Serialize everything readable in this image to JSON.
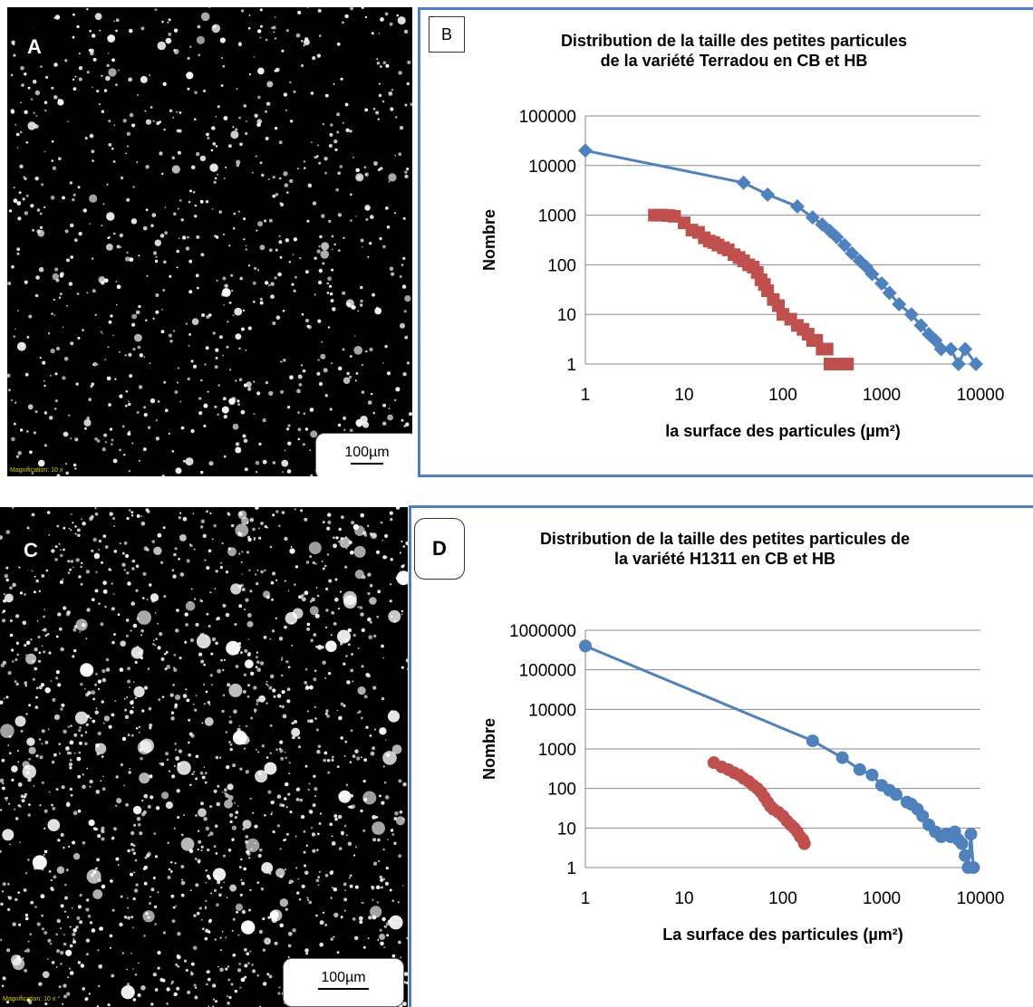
{
  "panels": {
    "a": {
      "letter": "A",
      "scalebar": "100µm",
      "magnification": "Magnification: 10 x"
    },
    "b": {
      "letter": "B"
    },
    "c": {
      "letter": "C",
      "scalebar": "100µm",
      "magnification": "Magnification: 10 x"
    },
    "d": {
      "letter": "D"
    }
  },
  "colors": {
    "series_blue": "#4f81bd",
    "series_red": "#c0504d",
    "rule": "#4f7fc0"
  },
  "chart_data": [
    {
      "type": "scatter",
      "title_line1": "Distribution de la taille des petites particules",
      "title_line2": "de la variété Terradou  en CB et HB",
      "xlabel": "la surface des particules (µm²)",
      "ylabel": "Nombre",
      "x_scale": "log",
      "y_scale": "log",
      "xlim": [
        1,
        10000
      ],
      "ylim": [
        1,
        100000
      ],
      "x_ticks": [
        "1",
        "10",
        "100",
        "1000",
        "10000"
      ],
      "y_ticks": [
        "1",
        "10",
        "100",
        "1000",
        "10000",
        "100000"
      ],
      "grid": "horizontal",
      "series": [
        {
          "color": "#4f81bd",
          "marker": "diamond",
          "line": true,
          "points": [
            [
              1,
              20000
            ],
            [
              40,
              4500
            ],
            [
              70,
              2600
            ],
            [
              140,
              1500
            ],
            [
              200,
              900
            ],
            [
              250,
              650
            ],
            [
              300,
              480
            ],
            [
              350,
              360
            ],
            [
              420,
              250
            ],
            [
              500,
              170
            ],
            [
              600,
              120
            ],
            [
              700,
              90
            ],
            [
              800,
              65
            ],
            [
              1000,
              42
            ],
            [
              1200,
              27
            ],
            [
              1500,
              16
            ],
            [
              2000,
              10
            ],
            [
              2500,
              6
            ],
            [
              3000,
              4
            ],
            [
              3500,
              3
            ],
            [
              4000,
              2
            ],
            [
              5000,
              2
            ],
            [
              6000,
              1
            ],
            [
              7000,
              2
            ],
            [
              9000,
              1
            ]
          ]
        },
        {
          "color": "#c0504d",
          "marker": "square",
          "line": false,
          "points": [
            [
              5,
              1000
            ],
            [
              6,
              1000
            ],
            [
              7,
              980
            ],
            [
              8,
              950
            ],
            [
              10,
              700
            ],
            [
              12,
              500
            ],
            [
              14,
              450
            ],
            [
              16,
              350
            ],
            [
              18,
              300
            ],
            [
              20,
              280
            ],
            [
              22,
              250
            ],
            [
              25,
              220
            ],
            [
              28,
              200
            ],
            [
              32,
              160
            ],
            [
              36,
              140
            ],
            [
              40,
              120
            ],
            [
              45,
              100
            ],
            [
              50,
              90
            ],
            [
              55,
              70
            ],
            [
              60,
              50
            ],
            [
              65,
              40
            ],
            [
              70,
              30
            ],
            [
              80,
              20
            ],
            [
              90,
              15
            ],
            [
              100,
              10
            ],
            [
              120,
              8
            ],
            [
              140,
              6
            ],
            [
              160,
              5
            ],
            [
              180,
              4
            ],
            [
              200,
              3
            ],
            [
              220,
              3
            ],
            [
              250,
              2
            ],
            [
              280,
              2
            ],
            [
              300,
              1
            ],
            [
              350,
              1
            ],
            [
              400,
              1
            ],
            [
              450,
              1
            ]
          ]
        }
      ]
    },
    {
      "type": "scatter",
      "title_line1": "Distribution de la taille des petites  particules de",
      "title_line2": "la variété H1311 en CB et HB",
      "xlabel": "La surface des particules (µm²)",
      "ylabel": "Nombre",
      "x_scale": "log",
      "y_scale": "log",
      "xlim": [
        1,
        10000
      ],
      "ylim": [
        1,
        1000000
      ],
      "x_ticks": [
        "1",
        "10",
        "100",
        "1000",
        "10000"
      ],
      "y_ticks": [
        "1",
        "10",
        "100",
        "1000",
        "10000",
        "100000",
        "1000000"
      ],
      "grid": "horizontal",
      "series": [
        {
          "color": "#4f81bd",
          "marker": "circle",
          "line": true,
          "points": [
            [
              1,
              400000
            ],
            [
              200,
              1600
            ],
            [
              400,
              600
            ],
            [
              600,
              300
            ],
            [
              800,
              220
            ],
            [
              1000,
              120
            ],
            [
              1200,
              90
            ],
            [
              1400,
              70
            ],
            [
              1800,
              45
            ],
            [
              2000,
              40
            ],
            [
              2300,
              30
            ],
            [
              2600,
              20
            ],
            [
              3000,
              12
            ],
            [
              3500,
              8
            ],
            [
              4000,
              6
            ],
            [
              4500,
              7
            ],
            [
              5000,
              6
            ],
            [
              5500,
              8
            ],
            [
              6000,
              5
            ],
            [
              6500,
              4
            ],
            [
              7000,
              2
            ],
            [
              7500,
              1
            ],
            [
              8000,
              7
            ],
            [
              8500,
              1
            ]
          ]
        },
        {
          "color": "#c0504d",
          "marker": "circle",
          "line": true,
          "points": [
            [
              20,
              450
            ],
            [
              24,
              350
            ],
            [
              28,
              300
            ],
            [
              32,
              250
            ],
            [
              36,
              220
            ],
            [
              40,
              180
            ],
            [
              45,
              150
            ],
            [
              50,
              120
            ],
            [
              55,
              100
            ],
            [
              60,
              80
            ],
            [
              65,
              60
            ],
            [
              70,
              45
            ],
            [
              75,
              35
            ],
            [
              80,
              30
            ],
            [
              90,
              25
            ],
            [
              100,
              20
            ],
            [
              110,
              15
            ],
            [
              120,
              12
            ],
            [
              130,
              10
            ],
            [
              140,
              8
            ],
            [
              150,
              6
            ],
            [
              160,
              5
            ],
            [
              165,
              4
            ]
          ]
        }
      ]
    }
  ]
}
